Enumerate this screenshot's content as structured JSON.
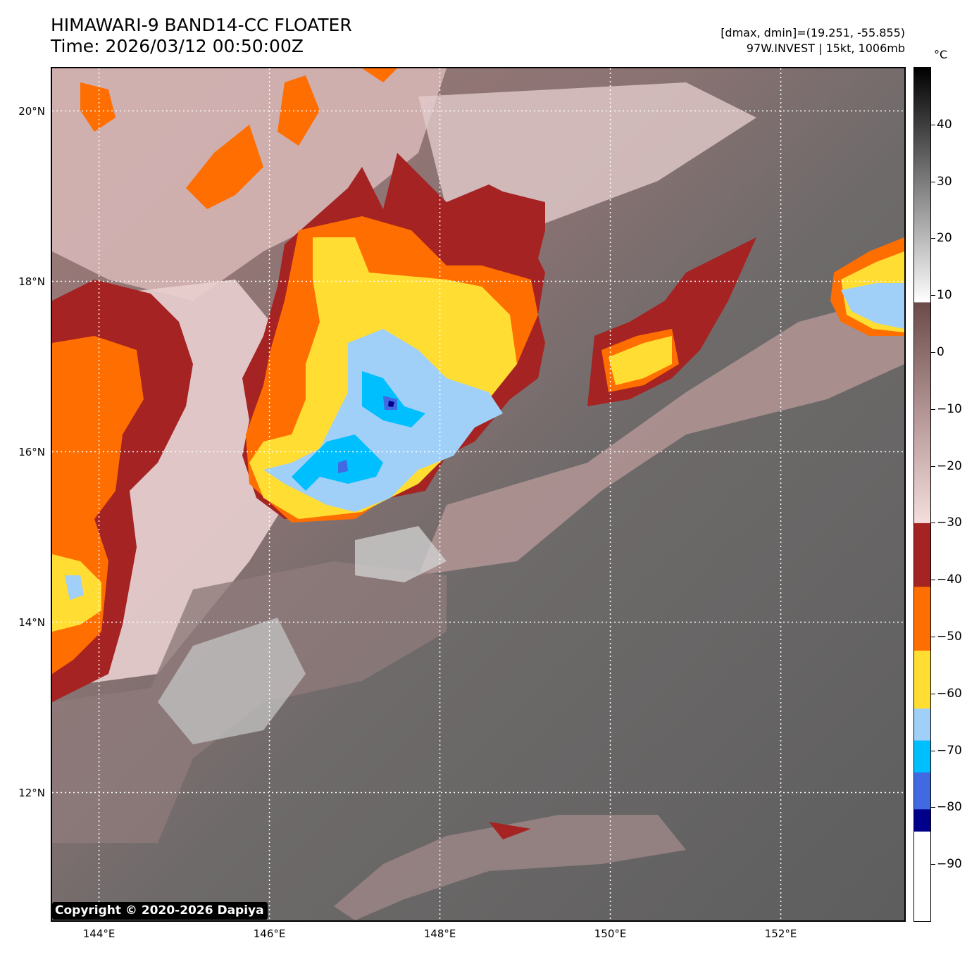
{
  "header": {
    "title_line1": "HIMAWARI-9 BAND14-CC FLOATER",
    "title_line2": "Time: 2026/03/12 00:50:00Z",
    "info_line1": "[dmax, dmin]=(19.251, -55.855)",
    "info_line2": "97W.INVEST | 15kt, 1006mb"
  },
  "map": {
    "lat_range": [
      10.5,
      20.5
    ],
    "lon_range": [
      143.45,
      153.45
    ],
    "lat_labels": [
      "20°N",
      "18°N",
      "16°N",
      "14°N",
      "12°N"
    ],
    "lat_values": [
      20,
      18,
      16,
      14,
      12
    ],
    "lon_labels": [
      "144°E",
      "146°E",
      "148°E",
      "150°E",
      "152°E"
    ],
    "lon_values": [
      144,
      146,
      148,
      150,
      152
    ],
    "gridlines": "dotted white",
    "copyright": "Copyright © 2020-2026 Dapiya"
  },
  "colorbar": {
    "unit": "°C",
    "range": [
      -100,
      50
    ],
    "tick_values": [
      40,
      30,
      20,
      10,
      0,
      -10,
      -20,
      -30,
      -40,
      -50,
      -60,
      -70,
      -80,
      -90
    ],
    "tick_labels": [
      "40",
      "30",
      "20",
      "10",
      "0",
      "−10",
      "−20",
      "−30",
      "−40",
      "−50",
      "−60",
      "−70",
      "−80",
      "−90"
    ],
    "colors": {
      "below_minus90": "#ffffff",
      "minus85_minus80": "#00008b",
      "minus80_minus75": "#4169e1",
      "minus75_minus70": "#00bfff",
      "minus70_minus60": "#a0d0f8",
      "minus60_minus50": "#ffdd33",
      "minus50_minus40": "#ff6e00",
      "minus40_minus30": "#a52322",
      "warm_gradient": "#f5dede to #6a4b4a",
      "gray_gradient": "#ffffff to #000000"
    }
  }
}
